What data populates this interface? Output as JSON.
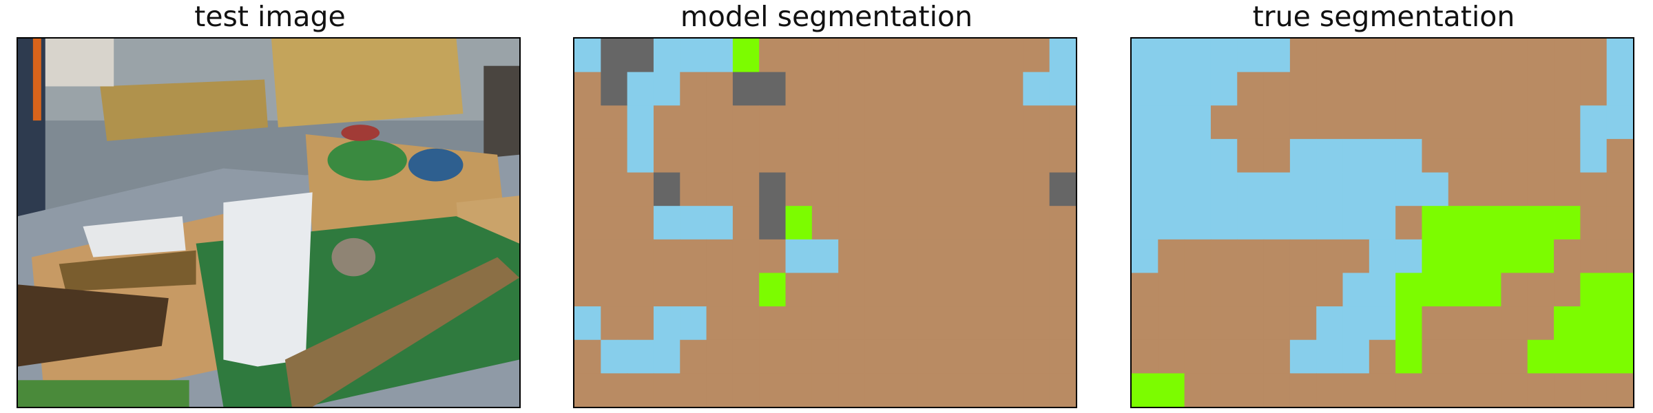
{
  "panels": {
    "test_image": {
      "title": "test image"
    },
    "model_segmentation": {
      "title": "model segmentation"
    },
    "true_segmentation": {
      "title": "true segmentation"
    }
  },
  "palette": {
    "T": "#b98b63",
    "S": "#87ceeb",
    "G": "#7cfc00",
    "D": "#666666"
  },
  "legend_note": "",
  "model_grid": [
    "SDDSSSGTTTTTTTTTTTS",
    "TDSSTTDDTTTTTTTTTSS",
    "TTSTTTTTTTTTTTTTTTT",
    "TTSTTTTTTTTTTTTTTTT",
    "TTTDTTTDTTTTTTTTTTD",
    "TTTSSSTDGTTTTTTTTTT",
    "TTTTTTTTSSTTTTTTTTT",
    "TTTTTTTGTTTTTTTTTTT",
    "STTSSTTTTTTTTTTTTTT",
    "TSSSTTTTTTTTTTTTTTT",
    "TTTTTTTTTTTTTTTTTTT"
  ],
  "true_grid": [
    "SSSSSSTTTTTTTTTTTTS",
    "SSSSTTTTTTTTTTTTTTS",
    "SSSTTTTTTTTTTTTTTSS",
    "SSSSTTSSSSSTTTTTTST",
    "SSSSSSSSSSSSTTTTTTT",
    "SSSSSSSSSSTGGGGGGTT",
    "STTTTTTTTSSGGGGGTTT",
    "TTTTTTTTSSGGGGTTTGG",
    "TTTTTTTSSSGTTTTTGGG",
    "TTTTTTSSSTGTTTTGGGG",
    "GGTTTTTTTTTTTTTTTTT"
  ]
}
